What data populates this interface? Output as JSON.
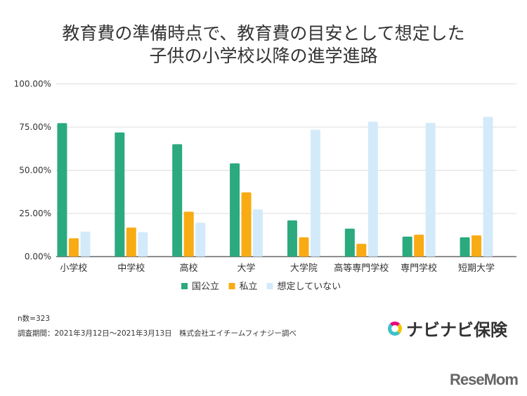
{
  "chart_data": {
    "type": "bar",
    "title": "教育費の準備時点で、教育費の目安として想定した\n子供の小学校以降の進学進路",
    "title_lines": [
      "教育費の準備時点で、教育費の目安として想定した",
      "子供の小学校以降の進学進路"
    ],
    "categories": [
      "小学校",
      "中学校",
      "高校",
      "大学",
      "大学院",
      "高等専門学校",
      "専門学校",
      "短期大学"
    ],
    "series": [
      {
        "name": "国公立",
        "color": "#2baa7e",
        "values": [
          77.3,
          71.9,
          65.1,
          54.0,
          21.0,
          16.2,
          11.6,
          11.2
        ]
      },
      {
        "name": "私立",
        "color": "#f9ab13",
        "values": [
          10.6,
          16.8,
          26.0,
          37.2,
          11.2,
          7.4,
          12.7,
          12.3
        ]
      },
      {
        "name": "想定していない",
        "color": "#d3eafa",
        "values": [
          14.5,
          14.2,
          19.6,
          27.3,
          73.5,
          78.1,
          77.4,
          80.9
        ]
      }
    ],
    "yticks": [
      "0.00%",
      "25.00%",
      "50.00%",
      "75.00%",
      "100.00%"
    ],
    "ylim": [
      0,
      100
    ],
    "grid": true,
    "legend": "bottom",
    "xlabel": "",
    "ylabel": ""
  },
  "notes": {
    "n": "n数=323",
    "period": "調査期間：2021年3月12日～2021年3月13日　株式会社エイチームフィナジー調べ"
  },
  "logos": {
    "navinavi": "ナビナビ保険",
    "resemom": "ReseMom"
  }
}
